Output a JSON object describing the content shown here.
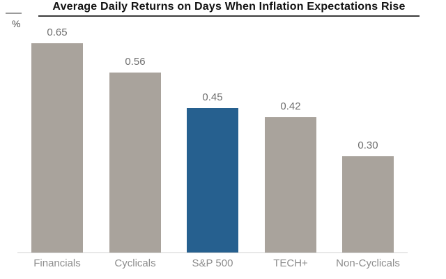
{
  "chart_data": {
    "type": "bar",
    "title": "Average Daily Returns on Days When Inflation Expectations Rise",
    "ylabel": "%",
    "xlabel": "",
    "categories": [
      "Financials",
      "Cyclicals",
      "S&P 500",
      "TECH+",
      "Non-Cyclicals"
    ],
    "values": [
      0.65,
      0.56,
      0.45,
      0.42,
      0.3
    ],
    "value_labels": [
      "0.65",
      "0.56",
      "0.45",
      "0.42",
      "0.30"
    ],
    "colors": [
      "#a9a39c",
      "#a9a39c",
      "#26608f",
      "#a9a39c",
      "#a9a39c"
    ],
    "bar_color_default": "#a9a39c",
    "bar_color_highlight": "#26608f",
    "highlight_category": "S&P 500",
    "ylim": [
      0,
      0.75
    ],
    "grid": false,
    "legend": null
  }
}
